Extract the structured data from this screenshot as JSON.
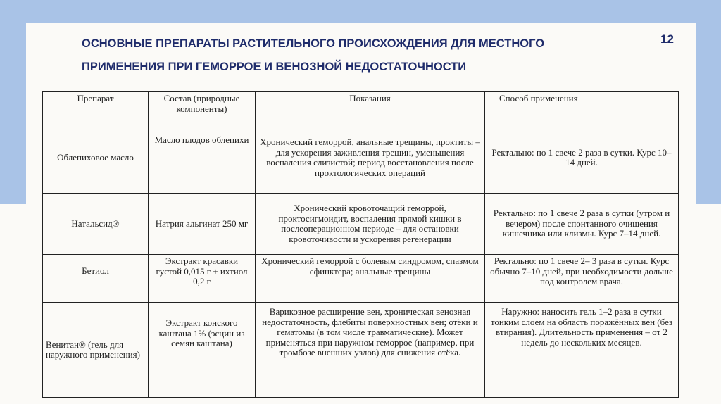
{
  "slide": {
    "title_line1": "ОСНОВНЫЕ ПРЕПАРАТЫ РАСТИТЕЛЬНОГО ПРОИСХОЖДЕНИЯ ДЛЯ МЕСТНОГО",
    "title_line2": "ПРИМЕНЕНИЯ ПРИ ГЕМОРРОЕ И ВЕНОЗНОЙ НЕДОСТАТОЧНОСТИ",
    "page_number": "12",
    "colors": {
      "background_band": "#a9c3e7",
      "title": "#1f2c6b",
      "slide": "#fbfaf7"
    }
  },
  "table": {
    "headers": [
      "Препарат",
      "Состав (природные компоненты)",
      "Показания",
      "Способ применения"
    ],
    "rows": [
      [
        "Облепиховое масло",
        "Масло плодов облепихи",
        "Хронический геморрой, анальные трещины, проктиты – для ускорения заживления трещин, уменьшения воспаления слизистой; период восстановления после проктологических операций",
        "Ректально: по 1 свече 2 раза в сутки. Курс 10–14 дней."
      ],
      [
        "Натальсид®",
        "Натрия альгинат 250 мг",
        "Хронический кровоточащий геморрой, проктосигмоидит, воспаления прямой кишки в послеоперационном периоде – для остановки кровоточивости и ускорения регенерации",
        "Ректально: по 1 свече 2 раза в сутки (утром и вечером) после спонтанного очищения кишечника или клизмы. Курс 7–14 дней."
      ],
      [
        "Бетиол",
        "Экстракт красавки густой 0,015 г + ихтиол 0,2 г",
        "Хронический геморрой с болевым синдромом, спазмом сфинктера; анальные трещины",
        "Ректально: по 1 свече 2– 3 раза в сутки. Курс обычно 7–10 дней, при необходимости дольше под контролем врача."
      ],
      [
        "Венитан® (гель для наружного применения)",
        "Экстракт конского каштана 1% (эсцин из семян каштана)",
        "Варикозное расширение вен, хроническая венозная недостаточность, флебиты поверхностных вен; отёки и гематомы (в том числе травматические). Может применяться при наружном геморрое (например, при тромбозе внешних узлов) для снижения отёка.",
        "Наружно: наносить гель 1–2 раза в сутки тонким слоем на область поражённых вен (без втирания). Длительность применения – от 2 недель до нескольких месяцев."
      ]
    ]
  }
}
